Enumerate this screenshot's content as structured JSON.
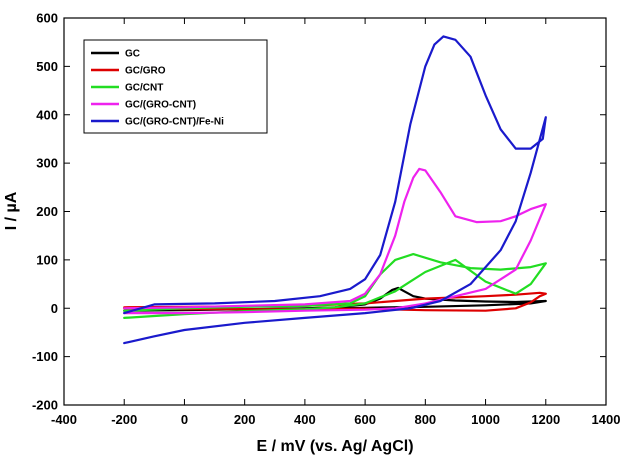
{
  "chart_data": {
    "type": "line",
    "xlabel": "E / mV (vs. Ag/ AgCl)",
    "ylabel": "I / µA",
    "xlim": [
      -400,
      1400
    ],
    "ylim": [
      -200,
      600
    ],
    "xticks": [
      -400,
      -200,
      0,
      200,
      400,
      600,
      800,
      1000,
      1200,
      1400
    ],
    "yticks": [
      -200,
      -100,
      0,
      100,
      200,
      300,
      400,
      500,
      600
    ],
    "grid": false,
    "legend_position": "top-left",
    "series": [
      {
        "name": "GC",
        "color": "#000000",
        "points": [
          [
            -200,
            -5
          ],
          [
            0,
            -4
          ],
          [
            200,
            -2
          ],
          [
            400,
            0
          ],
          [
            500,
            2
          ],
          [
            600,
            8
          ],
          [
            650,
            20
          ],
          [
            690,
            38
          ],
          [
            710,
            42
          ],
          [
            730,
            35
          ],
          [
            760,
            25
          ],
          [
            800,
            20
          ],
          [
            900,
            16
          ],
          [
            1000,
            14
          ],
          [
            1100,
            13
          ],
          [
            1200,
            15
          ],
          [
            1150,
            10
          ],
          [
            1000,
            6
          ],
          [
            800,
            3
          ],
          [
            600,
            1
          ],
          [
            400,
            -1
          ],
          [
            200,
            -2
          ],
          [
            0,
            -3
          ],
          [
            -200,
            -5
          ]
        ]
      },
      {
        "name": "GC/GRO",
        "color": "#dd0000",
        "points": [
          [
            -200,
            0
          ],
          [
            0,
            -2
          ],
          [
            200,
            -2
          ],
          [
            400,
            -2
          ],
          [
            600,
            -1
          ],
          [
            800,
            -4
          ],
          [
            1000,
            -5
          ],
          [
            1100,
            0
          ],
          [
            1150,
            12
          ],
          [
            1180,
            25
          ],
          [
            1200,
            30
          ],
          [
            1180,
            32
          ],
          [
            1100,
            28
          ],
          [
            1000,
            25
          ],
          [
            800,
            20
          ],
          [
            600,
            10
          ],
          [
            400,
            5
          ],
          [
            200,
            4
          ],
          [
            0,
            3
          ],
          [
            -200,
            2
          ]
        ]
      },
      {
        "name": "GC/CNT",
        "color": "#22dd22",
        "points": [
          [
            -200,
            -20
          ],
          [
            -100,
            -16
          ],
          [
            0,
            -12
          ],
          [
            200,
            -6
          ],
          [
            400,
            -2
          ],
          [
            500,
            2
          ],
          [
            600,
            10
          ],
          [
            700,
            35
          ],
          [
            750,
            55
          ],
          [
            800,
            75
          ],
          [
            900,
            100
          ],
          [
            1000,
            55
          ],
          [
            1100,
            30
          ],
          [
            1150,
            50
          ],
          [
            1200,
            93
          ],
          [
            1150,
            85
          ],
          [
            1050,
            80
          ],
          [
            950,
            83
          ],
          [
            850,
            95
          ],
          [
            760,
            112
          ],
          [
            700,
            100
          ],
          [
            650,
            70
          ],
          [
            600,
            25
          ],
          [
            550,
            10
          ],
          [
            400,
            5
          ],
          [
            200,
            3
          ],
          [
            0,
            0
          ],
          [
            -200,
            -5
          ]
        ]
      },
      {
        "name": "GC/(GRO-CNT)",
        "color": "#ee22ee",
        "points": [
          [
            -200,
            -10
          ],
          [
            -100,
            -10
          ],
          [
            0,
            -10
          ],
          [
            200,
            -8
          ],
          [
            400,
            -5
          ],
          [
            600,
            -3
          ],
          [
            700,
            0
          ],
          [
            800,
            10
          ],
          [
            900,
            25
          ],
          [
            1000,
            40
          ],
          [
            1100,
            80
          ],
          [
            1150,
            140
          ],
          [
            1200,
            215
          ],
          [
            1150,
            205
          ],
          [
            1100,
            190
          ],
          [
            1050,
            180
          ],
          [
            970,
            178
          ],
          [
            900,
            190
          ],
          [
            850,
            240
          ],
          [
            800,
            285
          ],
          [
            780,
            288
          ],
          [
            760,
            270
          ],
          [
            730,
            220
          ],
          [
            700,
            150
          ],
          [
            650,
            70
          ],
          [
            600,
            30
          ],
          [
            550,
            15
          ],
          [
            400,
            8
          ],
          [
            200,
            5
          ],
          [
            0,
            2
          ],
          [
            -200,
            0
          ]
        ]
      },
      {
        "name": "GC/(GRO-CNT)/Fe-Ni",
        "color": "#1a1acc",
        "points": [
          [
            -200,
            -72
          ],
          [
            -100,
            -58
          ],
          [
            0,
            -45
          ],
          [
            200,
            -30
          ],
          [
            400,
            -20
          ],
          [
            600,
            -10
          ],
          [
            750,
            0
          ],
          [
            850,
            15
          ],
          [
            950,
            50
          ],
          [
            1050,
            120
          ],
          [
            1100,
            180
          ],
          [
            1150,
            280
          ],
          [
            1200,
            395
          ],
          [
            1190,
            350
          ],
          [
            1150,
            330
          ],
          [
            1100,
            330
          ],
          [
            1050,
            370
          ],
          [
            1000,
            440
          ],
          [
            950,
            520
          ],
          [
            900,
            555
          ],
          [
            860,
            562
          ],
          [
            830,
            545
          ],
          [
            800,
            500
          ],
          [
            750,
            380
          ],
          [
            700,
            220
          ],
          [
            650,
            110
          ],
          [
            600,
            60
          ],
          [
            550,
            40
          ],
          [
            450,
            25
          ],
          [
            300,
            15
          ],
          [
            100,
            10
          ],
          [
            -100,
            8
          ],
          [
            -200,
            -10
          ]
        ]
      }
    ]
  }
}
